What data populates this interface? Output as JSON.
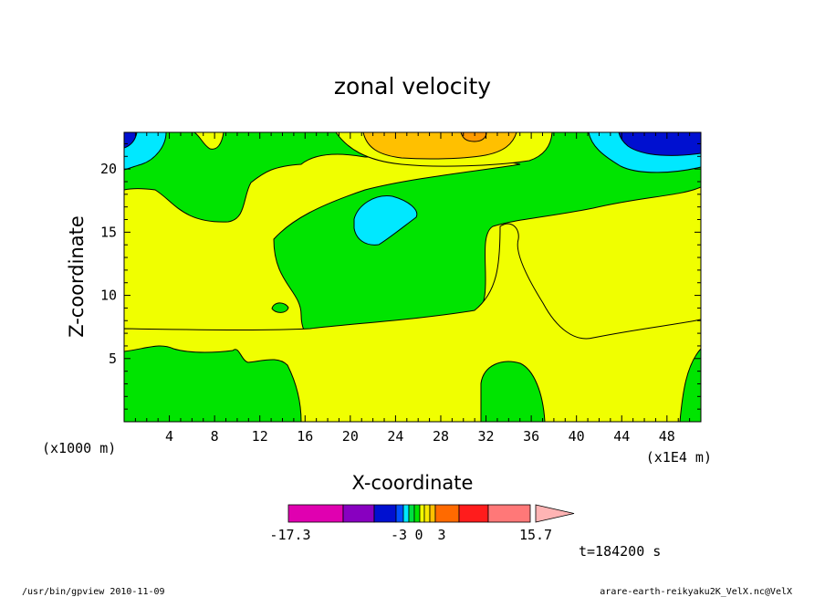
{
  "chart_data": {
    "type": "heatmap",
    "title": "zonal velocity",
    "xlabel": "X-coordinate",
    "ylabel": "Z-coordinate",
    "x_unit": "(x1E4 m)",
    "y_unit": "(x1000 m)",
    "xlim": [
      0,
      51
    ],
    "ylim": [
      0,
      22.9
    ],
    "x_ticks": [
      4,
      8,
      12,
      16,
      20,
      24,
      28,
      32,
      36,
      40,
      44,
      48
    ],
    "y_ticks": [
      5,
      10,
      15,
      20
    ],
    "grid": false,
    "fill_levels": [
      {
        "range": [
          -17.3,
          -10.0
        ],
        "color": "#e000b0"
      },
      {
        "range": [
          -10.0,
          -7.0
        ],
        "color": "#8800c0"
      },
      {
        "range": [
          -7.0,
          -4.0
        ],
        "color": "#0010d0"
      },
      {
        "range": [
          -4.0,
          -3.0
        ],
        "color": "#0050ff"
      },
      {
        "range": [
          -3.0,
          -2.0
        ],
        "color": "#00e8ff"
      },
      {
        "range": [
          -2.0,
          -1.0
        ],
        "color": "#00e040"
      },
      {
        "range": [
          -1.0,
          0.0
        ],
        "color": "#00e400"
      },
      {
        "range": [
          0.0,
          1.0
        ],
        "color": "#f0ff00"
      },
      {
        "range": [
          1.0,
          2.0
        ],
        "color": "#f8e800"
      },
      {
        "range": [
          2.0,
          3.0
        ],
        "color": "#ffc000"
      },
      {
        "range": [
          3.0,
          5.0
        ],
        "color": "#ff6a00"
      },
      {
        "range": [
          5.0,
          8.0
        ],
        "color": "#ff1c1c"
      },
      {
        "range": [
          8.0,
          15.7
        ],
        "color": "#ff7878"
      }
    ],
    "colorbar": {
      "labels": [
        "-17.3",
        "-3",
        "0",
        "3",
        "15.7"
      ],
      "extend_color": "#ffb4b4"
    },
    "regions": [
      {
        "sign": "positive",
        "value_range": "0 to 1",
        "color": "#f0ff00",
        "location": "background / mid-layer"
      },
      {
        "sign": "negative",
        "value_range": "-1 to 0",
        "color": "#00e400",
        "location": "upper band, central body, lower-left, bottom-center, bottom-right"
      },
      {
        "sign": "negative",
        "value_range": "-3 to -2",
        "color": "#00e8ff",
        "location": "top-left corner, top-right, isolated cell near x=22-26, z=14-17"
      },
      {
        "sign": "negative",
        "value_range": "-7 to -4",
        "color": "#0010d0",
        "location": "top-left corner, top-right near x=44-51"
      },
      {
        "sign": "positive",
        "value_range": "2 to 3",
        "color": "#ffc000",
        "location": "top near x=21-36"
      },
      {
        "sign": "positive",
        "value_range": "3 to 5",
        "color": "#ff6a00",
        "location": "top near x=30-32"
      }
    ]
  },
  "annotations": {
    "time": "t=184200 s",
    "footer_left": "/usr/bin/gpview   2010-11-09",
    "footer_right": "arare-earth-reikyaku2K_VelX.nc@VelX"
  }
}
